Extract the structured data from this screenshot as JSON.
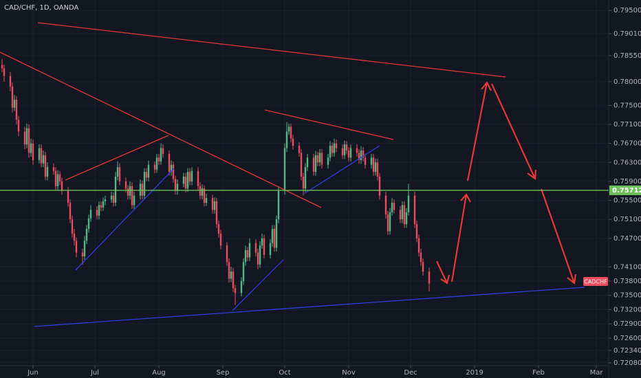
{
  "chart_data": {
    "type": "candlestick",
    "title": "CAD/CHF, 1D, OANDA",
    "symbol_tag": "CADCHF",
    "up_color": "#53b987",
    "down_color": "#eb4d5c",
    "grid": true,
    "xlim": [
      -16,
      279
    ],
    "ylim": [
      0.7202,
      0.7972
    ],
    "xticks": [
      {
        "value": 0,
        "label": "Jun"
      },
      {
        "value": 30,
        "label": "Jul"
      },
      {
        "value": 61,
        "label": "Aug"
      },
      {
        "value": 92,
        "label": "Sep"
      },
      {
        "value": 122,
        "label": "Oct"
      },
      {
        "value": 153,
        "label": "Nov"
      },
      {
        "value": 183,
        "label": "Dec"
      },
      {
        "value": 214,
        "label": "2019"
      },
      {
        "value": 245,
        "label": "Feb"
      },
      {
        "value": 273,
        "label": "Mar"
      }
    ],
    "yticks": [
      {
        "value": 0.795,
        "label": "0.79500"
      },
      {
        "value": 0.7901,
        "label": "0.79010"
      },
      {
        "value": 0.7855,
        "label": "0.78550"
      },
      {
        "value": 0.78,
        "label": "0.78000"
      },
      {
        "value": 0.775,
        "label": "0.77500"
      },
      {
        "value": 0.771,
        "label": "0.77100"
      },
      {
        "value": 0.767,
        "label": "0.76700"
      },
      {
        "value": 0.763,
        "label": "0.76300"
      },
      {
        "value": 0.759,
        "label": "0.75900"
      },
      {
        "value": 0.755,
        "label": "0.75500"
      },
      {
        "value": 0.751,
        "label": "0.75100"
      },
      {
        "value": 0.747,
        "label": "0.74700"
      },
      {
        "value": 0.741,
        "label": "0.74100"
      },
      {
        "value": 0.738,
        "label": "0.73800"
      },
      {
        "value": 0.735,
        "label": "0.73500"
      },
      {
        "value": 0.732,
        "label": "0.73200"
      },
      {
        "value": 0.729,
        "label": "0.72900"
      },
      {
        "value": 0.726,
        "label": "0.72600"
      },
      {
        "value": 0.7234,
        "label": "0.72340"
      },
      {
        "value": 0.7208,
        "label": "0.72080"
      }
    ],
    "hline": {
      "value": 0.75712,
      "label": "0.75712",
      "color": "#6fbf5a"
    },
    "candles": [
      [
        -15,
        0.7835,
        0.7848,
        0.782,
        0.7828
      ],
      [
        -14,
        0.7828,
        0.7836,
        0.78,
        0.7812
      ],
      [
        -11,
        0.7812,
        0.782,
        0.778,
        0.779
      ],
      [
        -10,
        0.779,
        0.7798,
        0.7735,
        0.7745
      ],
      [
        -9,
        0.7745,
        0.7772,
        0.7738,
        0.7762
      ],
      [
        -8,
        0.7762,
        0.777,
        0.771,
        0.772
      ],
      [
        -7,
        0.772,
        0.7728,
        0.7685,
        0.7695
      ],
      [
        -4,
        0.7695,
        0.7705,
        0.7658,
        0.7668
      ],
      [
        -3,
        0.7668,
        0.7712,
        0.766,
        0.7702
      ],
      [
        -2,
        0.7702,
        0.771,
        0.764,
        0.765
      ],
      [
        -1,
        0.765,
        0.768,
        0.7642,
        0.767
      ],
      [
        0,
        0.767,
        0.7678,
        0.7625,
        0.7635
      ],
      [
        3,
        0.7635,
        0.7668,
        0.7628,
        0.766
      ],
      [
        4,
        0.766,
        0.7668,
        0.762,
        0.7628
      ],
      [
        5,
        0.7628,
        0.7655,
        0.762,
        0.7645
      ],
      [
        6,
        0.7645,
        0.7652,
        0.7592,
        0.76
      ],
      [
        7,
        0.76,
        0.763,
        0.7592,
        0.762
      ],
      [
        10,
        0.762,
        0.7628,
        0.7604,
        0.7612
      ],
      [
        11,
        0.7612,
        0.762,
        0.7572,
        0.758
      ],
      [
        12,
        0.758,
        0.7614,
        0.7572,
        0.7605
      ],
      [
        13,
        0.7605,
        0.7612,
        0.7582,
        0.759
      ],
      [
        14,
        0.759,
        0.7598,
        0.7562,
        0.757
      ],
      [
        17,
        0.757,
        0.7578,
        0.7537,
        0.7545
      ],
      [
        18,
        0.7545,
        0.7552,
        0.7502,
        0.751
      ],
      [
        19,
        0.751,
        0.7518,
        0.7472,
        0.748
      ],
      [
        20,
        0.748,
        0.749,
        0.7455,
        0.7465
      ],
      [
        21,
        0.7465,
        0.7472,
        0.743,
        0.744
      ],
      [
        24,
        0.744,
        0.7448,
        0.7415,
        0.7432
      ],
      [
        25,
        0.7432,
        0.7475,
        0.7425,
        0.7465
      ],
      [
        26,
        0.7465,
        0.7498,
        0.7458,
        0.749
      ],
      [
        27,
        0.749,
        0.752,
        0.7482,
        0.7512
      ],
      [
        28,
        0.7512,
        0.754,
        0.7505,
        0.753
      ],
      [
        31,
        0.753,
        0.7538,
        0.751,
        0.7518
      ],
      [
        32,
        0.7518,
        0.7548,
        0.751,
        0.754
      ],
      [
        33,
        0.754,
        0.7548,
        0.7527,
        0.7535
      ],
      [
        34,
        0.7535,
        0.7556,
        0.7528,
        0.7548
      ],
      [
        35,
        0.7548,
        0.756,
        0.754,
        0.7552
      ],
      [
        38,
        0.7552,
        0.7568,
        0.7545,
        0.756
      ],
      [
        39,
        0.756,
        0.7567,
        0.7537,
        0.7545
      ],
      [
        40,
        0.7545,
        0.761,
        0.7538,
        0.76
      ],
      [
        41,
        0.76,
        0.7632,
        0.7592,
        0.762
      ],
      [
        42,
        0.762,
        0.7628,
        0.7582,
        0.759
      ],
      [
        45,
        0.759,
        0.7598,
        0.7567,
        0.7575
      ],
      [
        46,
        0.7575,
        0.7582,
        0.7552,
        0.756
      ],
      [
        47,
        0.756,
        0.759,
        0.7552,
        0.758
      ],
      [
        48,
        0.758,
        0.7588,
        0.7532,
        0.754
      ],
      [
        49,
        0.754,
        0.7568,
        0.7532,
        0.756
      ],
      [
        52,
        0.756,
        0.7594,
        0.7552,
        0.7585
      ],
      [
        53,
        0.7585,
        0.7592,
        0.7552,
        0.756
      ],
      [
        54,
        0.756,
        0.7618,
        0.7552,
        0.761
      ],
      [
        55,
        0.761,
        0.7618,
        0.759,
        0.7598
      ],
      [
        56,
        0.7598,
        0.7634,
        0.759,
        0.7625
      ],
      [
        59,
        0.7625,
        0.7632,
        0.7607,
        0.7615
      ],
      [
        60,
        0.7615,
        0.7648,
        0.7608,
        0.764
      ],
      [
        61,
        0.764,
        0.7648,
        0.7624,
        0.7632
      ],
      [
        62,
        0.7632,
        0.767,
        0.7625,
        0.766
      ],
      [
        63,
        0.766,
        0.7668,
        0.764,
        0.7648
      ],
      [
        66,
        0.7648,
        0.7655,
        0.7602,
        0.761
      ],
      [
        67,
        0.761,
        0.7634,
        0.7602,
        0.7625
      ],
      [
        68,
        0.7625,
        0.7632,
        0.7587,
        0.7595
      ],
      [
        69,
        0.7595,
        0.7602,
        0.7562,
        0.757
      ],
      [
        70,
        0.757,
        0.7594,
        0.7562,
        0.7585
      ],
      [
        73,
        0.7585,
        0.7608,
        0.7578,
        0.76
      ],
      [
        74,
        0.76,
        0.7608,
        0.7567,
        0.7575
      ],
      [
        75,
        0.7575,
        0.7618,
        0.7568,
        0.761
      ],
      [
        76,
        0.761,
        0.7618,
        0.7582,
        0.759
      ],
      [
        77,
        0.759,
        0.762,
        0.7582,
        0.7612
      ],
      [
        80,
        0.7612,
        0.762,
        0.7572,
        0.758
      ],
      [
        81,
        0.758,
        0.7588,
        0.7552,
        0.756
      ],
      [
        82,
        0.756,
        0.7584,
        0.7552,
        0.7575
      ],
      [
        83,
        0.7575,
        0.7582,
        0.7537,
        0.7545
      ],
      [
        84,
        0.7545,
        0.7564,
        0.7538,
        0.7555
      ],
      [
        87,
        0.7555,
        0.7562,
        0.7522,
        0.753
      ],
      [
        88,
        0.753,
        0.7556,
        0.7522,
        0.7548
      ],
      [
        89,
        0.7548,
        0.7555,
        0.7492,
        0.75
      ],
      [
        90,
        0.75,
        0.7508,
        0.7472,
        0.748
      ],
      [
        91,
        0.748,
        0.7488,
        0.7447,
        0.7455
      ],
      [
        94,
        0.7455,
        0.7462,
        0.7412,
        0.742
      ],
      [
        95,
        0.742,
        0.7428,
        0.7377,
        0.7385
      ],
      [
        96,
        0.7385,
        0.741,
        0.7378,
        0.74
      ],
      [
        97,
        0.74,
        0.7408,
        0.7357,
        0.7365
      ],
      [
        98,
        0.7365,
        0.7372,
        0.733,
        0.7355
      ],
      [
        101,
        0.7355,
        0.7388,
        0.7348,
        0.738
      ],
      [
        102,
        0.738,
        0.7428,
        0.7372,
        0.742
      ],
      [
        103,
        0.742,
        0.7455,
        0.7412,
        0.7445
      ],
      [
        104,
        0.7445,
        0.7452,
        0.7422,
        0.743
      ],
      [
        105,
        0.743,
        0.747,
        0.7422,
        0.746
      ],
      [
        108,
        0.746,
        0.7468,
        0.7432,
        0.744
      ],
      [
        109,
        0.744,
        0.7448,
        0.7405,
        0.7415
      ],
      [
        110,
        0.7415,
        0.7464,
        0.7408,
        0.7455
      ],
      [
        111,
        0.7455,
        0.748,
        0.7448,
        0.747
      ],
      [
        112,
        0.747,
        0.7478,
        0.7427,
        0.7435
      ],
      [
        115,
        0.7435,
        0.7468,
        0.7428,
        0.746
      ],
      [
        116,
        0.746,
        0.7498,
        0.7452,
        0.749
      ],
      [
        117,
        0.749,
        0.7498,
        0.7442,
        0.745
      ],
      [
        118,
        0.745,
        0.7518,
        0.7442,
        0.751
      ],
      [
        119,
        0.751,
        0.758,
        0.7502,
        0.757
      ],
      [
        122,
        0.757,
        0.767,
        0.7562,
        0.766
      ],
      [
        123,
        0.766,
        0.7715,
        0.7652,
        0.7695
      ],
      [
        124,
        0.7695,
        0.7712,
        0.7688,
        0.7705
      ],
      [
        125,
        0.7705,
        0.7712,
        0.7672,
        0.768
      ],
      [
        126,
        0.768,
        0.7688,
        0.7657,
        0.7665
      ],
      [
        129,
        0.7665,
        0.7672,
        0.7642,
        0.765
      ],
      [
        130,
        0.765,
        0.7658,
        0.7592,
        0.76
      ],
      [
        131,
        0.76,
        0.7608,
        0.756,
        0.7575
      ],
      [
        132,
        0.7575,
        0.7628,
        0.7568,
        0.762
      ],
      [
        133,
        0.762,
        0.7648,
        0.7612,
        0.764
      ],
      [
        136,
        0.764,
        0.7648,
        0.7602,
        0.761
      ],
      [
        137,
        0.761,
        0.7654,
        0.7602,
        0.7645
      ],
      [
        138,
        0.7645,
        0.7652,
        0.7622,
        0.763
      ],
      [
        139,
        0.763,
        0.7658,
        0.7622,
        0.765
      ],
      [
        140,
        0.765,
        0.7658,
        0.7617,
        0.7625
      ],
      [
        143,
        0.7625,
        0.7648,
        0.7617,
        0.764
      ],
      [
        144,
        0.764,
        0.7675,
        0.7632,
        0.7665
      ],
      [
        145,
        0.7665,
        0.7672,
        0.7642,
        0.765
      ],
      [
        146,
        0.765,
        0.768,
        0.7642,
        0.767
      ],
      [
        147,
        0.767,
        0.7678,
        0.7652,
        0.766
      ],
      [
        150,
        0.766,
        0.7668,
        0.7637,
        0.7645
      ],
      [
        151,
        0.7645,
        0.7676,
        0.7637,
        0.7668
      ],
      [
        152,
        0.7668,
        0.7675,
        0.7647,
        0.7655
      ],
      [
        153,
        0.7655,
        0.7662,
        0.7632,
        0.764
      ],
      [
        154,
        0.764,
        0.7668,
        0.7632,
        0.766
      ],
      [
        157,
        0.766,
        0.7668,
        0.7642,
        0.765
      ],
      [
        158,
        0.765,
        0.7658,
        0.7627,
        0.7635
      ],
      [
        159,
        0.7635,
        0.7664,
        0.7627,
        0.7655
      ],
      [
        160,
        0.7655,
        0.7662,
        0.7632,
        0.764
      ],
      [
        161,
        0.764,
        0.7648,
        0.7617,
        0.7625
      ],
      [
        164,
        0.7625,
        0.7648,
        0.7617,
        0.764
      ],
      [
        165,
        0.764,
        0.7648,
        0.7602,
        0.761
      ],
      [
        166,
        0.761,
        0.7638,
        0.7602,
        0.763
      ],
      [
        167,
        0.763,
        0.7638,
        0.7592,
        0.76
      ],
      [
        168,
        0.76,
        0.7608,
        0.7552,
        0.756
      ],
      [
        171,
        0.756,
        0.7568,
        0.7512,
        0.752
      ],
      [
        172,
        0.752,
        0.7528,
        0.7477,
        0.7485
      ],
      [
        173,
        0.7485,
        0.7534,
        0.7478,
        0.7525
      ],
      [
        174,
        0.7525,
        0.7555,
        0.7518,
        0.7545
      ],
      [
        175,
        0.7545,
        0.7552,
        0.7522,
        0.753
      ],
      [
        178,
        0.753,
        0.7538,
        0.7502,
        0.751
      ],
      [
        179,
        0.751,
        0.7548,
        0.7502,
        0.754
      ],
      [
        180,
        0.754,
        0.7548,
        0.7492,
        0.75
      ],
      [
        181,
        0.75,
        0.7534,
        0.7492,
        0.7525
      ],
      [
        182,
        0.7525,
        0.7585,
        0.7518,
        0.756
      ],
      [
        185,
        0.756,
        0.7568,
        0.7492,
        0.75
      ],
      [
        186,
        0.75,
        0.7508,
        0.7462,
        0.747
      ],
      [
        187,
        0.747,
        0.7478,
        0.7432,
        0.744
      ],
      [
        188,
        0.744,
        0.7448,
        0.7412,
        0.742
      ],
      [
        189,
        0.742,
        0.7428,
        0.7392,
        0.74
      ],
      [
        192,
        0.74,
        0.7408,
        0.7358,
        0.7375
      ]
    ]
  }
}
